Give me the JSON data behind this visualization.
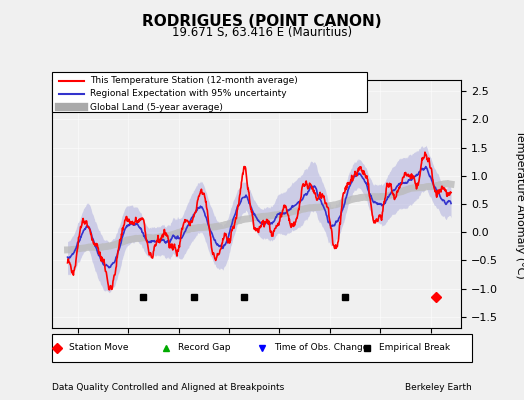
{
  "title": "RODRIGUES (POINT CANON)",
  "subtitle": "19.671 S, 63.416 E (Mauritius)",
  "ylabel": "Temperature Anomaly (°C)",
  "footer_left": "Data Quality Controlled and Aligned at Breakpoints",
  "footer_right": "Berkeley Earth",
  "ylim": [
    -1.7,
    2.7
  ],
  "xlim": [
    1935,
    2016
  ],
  "xticks": [
    1940,
    1950,
    1960,
    1970,
    1980,
    1990,
    2000,
    2010
  ],
  "yticks": [
    -1.5,
    -1.0,
    -0.5,
    0.0,
    0.5,
    1.0,
    1.5,
    2.0,
    2.5
  ],
  "legend_entries": [
    {
      "label": "This Temperature Station (12-month average)",
      "color": "#ff0000",
      "lw": 1.5
    },
    {
      "label": "Regional Expectation with 95% uncertainty",
      "color": "#3333cc",
      "lw": 1.5
    },
    {
      "label": "Global Land (5-year average)",
      "color": "#aaaaaa",
      "lw": 6
    }
  ],
  "marker_legend": [
    {
      "label": "Station Move",
      "color": "#ff0000",
      "marker": "D"
    },
    {
      "label": "Record Gap",
      "color": "#00aa00",
      "marker": "^"
    },
    {
      "label": "Time of Obs. Change",
      "color": "#0000ff",
      "marker": "v"
    },
    {
      "label": "Empirical Break",
      "color": "#000000",
      "marker": "s"
    }
  ],
  "empirical_breaks": [
    1953,
    1963,
    1973,
    1993
  ],
  "station_move_year": 2011,
  "background_color": "#f0f0f0",
  "plot_bg": "#f0f0f0"
}
